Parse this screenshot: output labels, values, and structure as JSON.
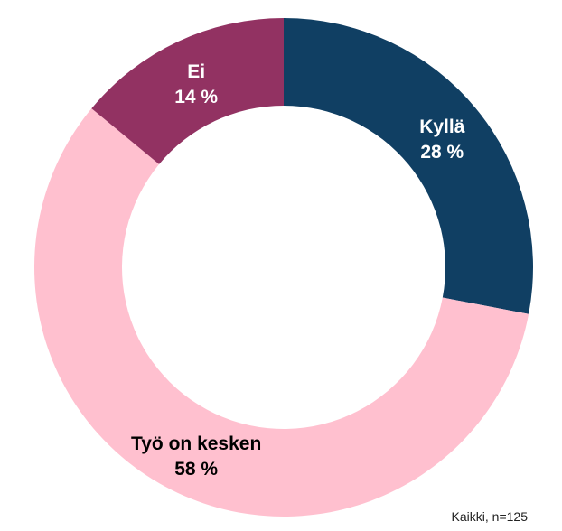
{
  "chart_data": {
    "type": "pie",
    "donut": true,
    "slices": [
      {
        "label": "Kyllä",
        "value": 28,
        "value_text": "28 %",
        "color": "#103F63",
        "label_color": "#FFFFFF"
      },
      {
        "label": "Työ on kesken",
        "value": 58,
        "value_text": "58 %",
        "color": "#FFC0CF",
        "label_color": "#000000"
      },
      {
        "label": "Ei",
        "value": 14,
        "value_text": "14 %",
        "color": "#923262",
        "label_color": "#FFFFFF"
      }
    ],
    "start": "top",
    "direction": "clockwise"
  },
  "footnote": "Kaikki, n=125"
}
